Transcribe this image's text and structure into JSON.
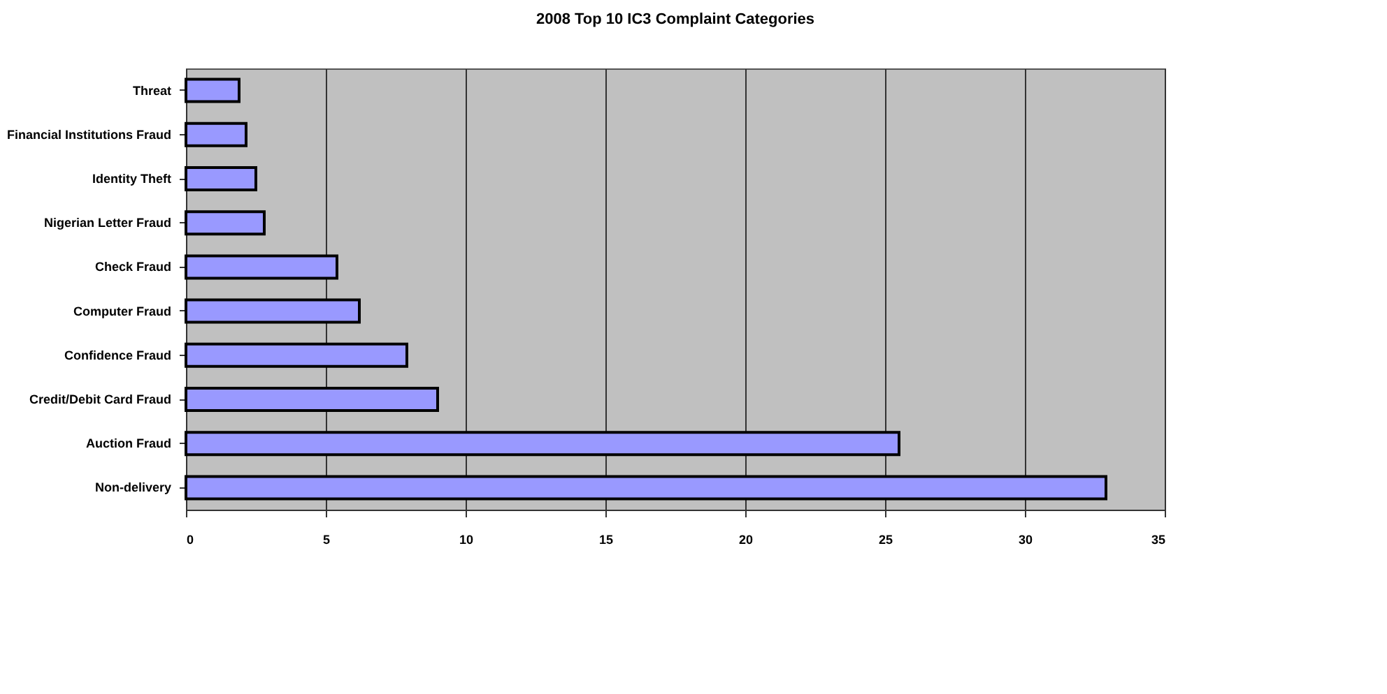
{
  "chart_data": {
    "type": "bar",
    "orientation": "horizontal",
    "title": "2008 Top 10 IC3 Complaint Categories",
    "categories": [
      "Threat",
      "Financial Institutions Fraud",
      "Identity Theft",
      "Nigerian Letter Fraud",
      "Check Fraud",
      "Computer Fraud",
      "Confidence Fraud",
      "Credit/Debit Card Fraud",
      "Auction Fraud",
      "Non-delivery"
    ],
    "values": [
      1.9,
      2.15,
      2.5,
      2.8,
      5.4,
      6.2,
      7.9,
      9.0,
      25.5,
      32.9
    ],
    "color": "#9999ff",
    "xlim": [
      0,
      35
    ],
    "xticks": [
      0,
      5,
      10,
      15,
      20,
      25,
      30,
      35
    ],
    "grid": "x"
  }
}
